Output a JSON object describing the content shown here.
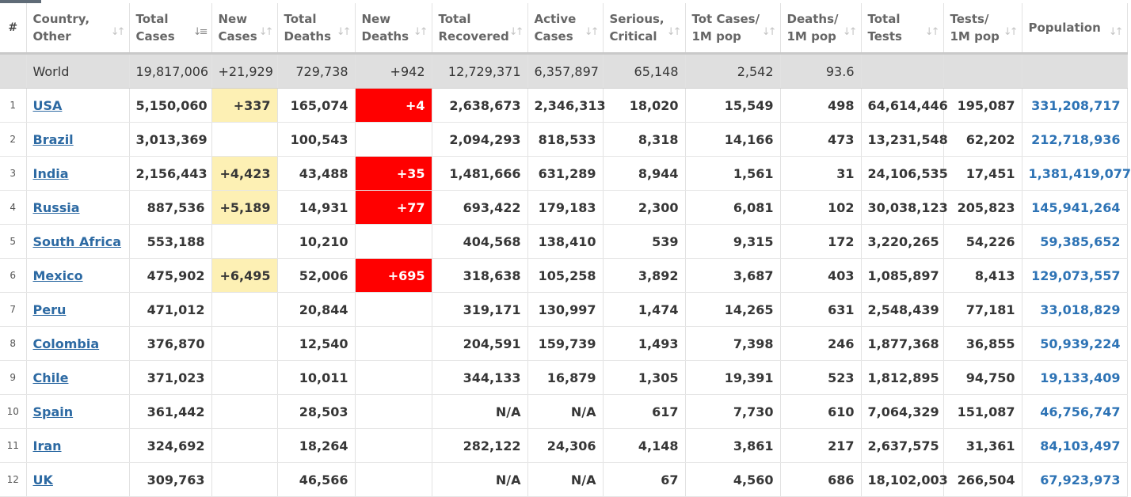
{
  "headers": [
    {
      "line1": "#",
      "line2": ""
    },
    {
      "line1": "Country,",
      "line2": "Other"
    },
    {
      "line1": "Total",
      "line2": "Cases"
    },
    {
      "line1": "New",
      "line2": "Cases"
    },
    {
      "line1": "Total",
      "line2": "Deaths"
    },
    {
      "line1": "New",
      "line2": "Deaths"
    },
    {
      "line1": "Total",
      "line2": "Recovered"
    },
    {
      "line1": "Active",
      "line2": "Cases"
    },
    {
      "line1": "Serious,",
      "line2": "Critical"
    },
    {
      "line1": "Tot Cases/",
      "line2": "1M pop"
    },
    {
      "line1": "Deaths/",
      "line2": "1M pop"
    },
    {
      "line1": "Total",
      "line2": "Tests"
    },
    {
      "line1": "Tests/",
      "line2": "1M pop"
    },
    {
      "line1": "Population",
      "line2": ""
    }
  ],
  "sort_icons": {
    "default": "⇅ sort-arrows",
    "active": "sort-descending"
  },
  "world": {
    "country": "World",
    "total_cases": "19,817,006",
    "new_cases": "+21,929",
    "total_deaths": "729,738",
    "new_deaths": "+942",
    "total_recovered": "12,729,371",
    "active_cases": "6,357,897",
    "serious": "65,148",
    "cases_per_1m": "2,542",
    "deaths_per_1m": "93.6",
    "total_tests": "",
    "tests_per_1m": "",
    "population": ""
  },
  "rows": [
    {
      "idx": "1",
      "country": "USA",
      "total_cases": "5,150,060",
      "new_cases": "+337",
      "total_deaths": "165,074",
      "new_deaths": "+4",
      "total_recovered": "2,638,673",
      "active_cases": "2,346,313",
      "serious": "18,020",
      "cases_per_1m": "15,549",
      "deaths_per_1m": "498",
      "total_tests": "64,614,446",
      "tests_per_1m": "195,087",
      "population": "331,208,717"
    },
    {
      "idx": "2",
      "country": "Brazil",
      "total_cases": "3,013,369",
      "new_cases": "",
      "total_deaths": "100,543",
      "new_deaths": "",
      "total_recovered": "2,094,293",
      "active_cases": "818,533",
      "serious": "8,318",
      "cases_per_1m": "14,166",
      "deaths_per_1m": "473",
      "total_tests": "13,231,548",
      "tests_per_1m": "62,202",
      "population": "212,718,936"
    },
    {
      "idx": "3",
      "country": "India",
      "total_cases": "2,156,443",
      "new_cases": "+4,423",
      "total_deaths": "43,488",
      "new_deaths": "+35",
      "total_recovered": "1,481,666",
      "active_cases": "631,289",
      "serious": "8,944",
      "cases_per_1m": "1,561",
      "deaths_per_1m": "31",
      "total_tests": "24,106,535",
      "tests_per_1m": "17,451",
      "population": "1,381,419,077"
    },
    {
      "idx": "4",
      "country": "Russia",
      "total_cases": "887,536",
      "new_cases": "+5,189",
      "total_deaths": "14,931",
      "new_deaths": "+77",
      "total_recovered": "693,422",
      "active_cases": "179,183",
      "serious": "2,300",
      "cases_per_1m": "6,081",
      "deaths_per_1m": "102",
      "total_tests": "30,038,123",
      "tests_per_1m": "205,823",
      "population": "145,941,264"
    },
    {
      "idx": "5",
      "country": "South Africa",
      "total_cases": "553,188",
      "new_cases": "",
      "total_deaths": "10,210",
      "new_deaths": "",
      "total_recovered": "404,568",
      "active_cases": "138,410",
      "serious": "539",
      "cases_per_1m": "9,315",
      "deaths_per_1m": "172",
      "total_tests": "3,220,265",
      "tests_per_1m": "54,226",
      "population": "59,385,652"
    },
    {
      "idx": "6",
      "country": "Mexico",
      "total_cases": "475,902",
      "new_cases": "+6,495",
      "total_deaths": "52,006",
      "new_deaths": "+695",
      "total_recovered": "318,638",
      "active_cases": "105,258",
      "serious": "3,892",
      "cases_per_1m": "3,687",
      "deaths_per_1m": "403",
      "total_tests": "1,085,897",
      "tests_per_1m": "8,413",
      "population": "129,073,557"
    },
    {
      "idx": "7",
      "country": "Peru",
      "total_cases": "471,012",
      "new_cases": "",
      "total_deaths": "20,844",
      "new_deaths": "",
      "total_recovered": "319,171",
      "active_cases": "130,997",
      "serious": "1,474",
      "cases_per_1m": "14,265",
      "deaths_per_1m": "631",
      "total_tests": "2,548,439",
      "tests_per_1m": "77,181",
      "population": "33,018,829"
    },
    {
      "idx": "8",
      "country": "Colombia",
      "total_cases": "376,870",
      "new_cases": "",
      "total_deaths": "12,540",
      "new_deaths": "",
      "total_recovered": "204,591",
      "active_cases": "159,739",
      "serious": "1,493",
      "cases_per_1m": "7,398",
      "deaths_per_1m": "246",
      "total_tests": "1,877,368",
      "tests_per_1m": "36,855",
      "population": "50,939,224"
    },
    {
      "idx": "9",
      "country": "Chile",
      "total_cases": "371,023",
      "new_cases": "",
      "total_deaths": "10,011",
      "new_deaths": "",
      "total_recovered": "344,133",
      "active_cases": "16,879",
      "serious": "1,305",
      "cases_per_1m": "19,391",
      "deaths_per_1m": "523",
      "total_tests": "1,812,895",
      "tests_per_1m": "94,750",
      "population": "19,133,409"
    },
    {
      "idx": "10",
      "country": "Spain",
      "total_cases": "361,442",
      "new_cases": "",
      "total_deaths": "28,503",
      "new_deaths": "",
      "total_recovered": "N/A",
      "active_cases": "N/A",
      "serious": "617",
      "cases_per_1m": "7,730",
      "deaths_per_1m": "610",
      "total_tests": "7,064,329",
      "tests_per_1m": "151,087",
      "population": "46,756,747"
    },
    {
      "idx": "11",
      "country": "Iran",
      "total_cases": "324,692",
      "new_cases": "",
      "total_deaths": "18,264",
      "new_deaths": "",
      "total_recovered": "282,122",
      "active_cases": "24,306",
      "serious": "4,148",
      "cases_per_1m": "3,861",
      "deaths_per_1m": "217",
      "total_tests": "2,637,575",
      "tests_per_1m": "31,361",
      "population": "84,103,497"
    },
    {
      "idx": "12",
      "country": "UK",
      "total_cases": "309,763",
      "new_cases": "",
      "total_deaths": "46,566",
      "new_deaths": "",
      "total_recovered": "N/A",
      "active_cases": "N/A",
      "serious": "67",
      "cases_per_1m": "4,560",
      "deaths_per_1m": "686",
      "total_tests": "18,102,003",
      "tests_per_1m": "266,504",
      "population": "67,923,973"
    }
  ],
  "colors": {
    "new_cases_highlight": "#fdf0b4",
    "new_deaths_highlight": "#ff0000",
    "link": "#2d6aa3",
    "population": "#2d73b5",
    "world_row": "#dfdfdf"
  }
}
